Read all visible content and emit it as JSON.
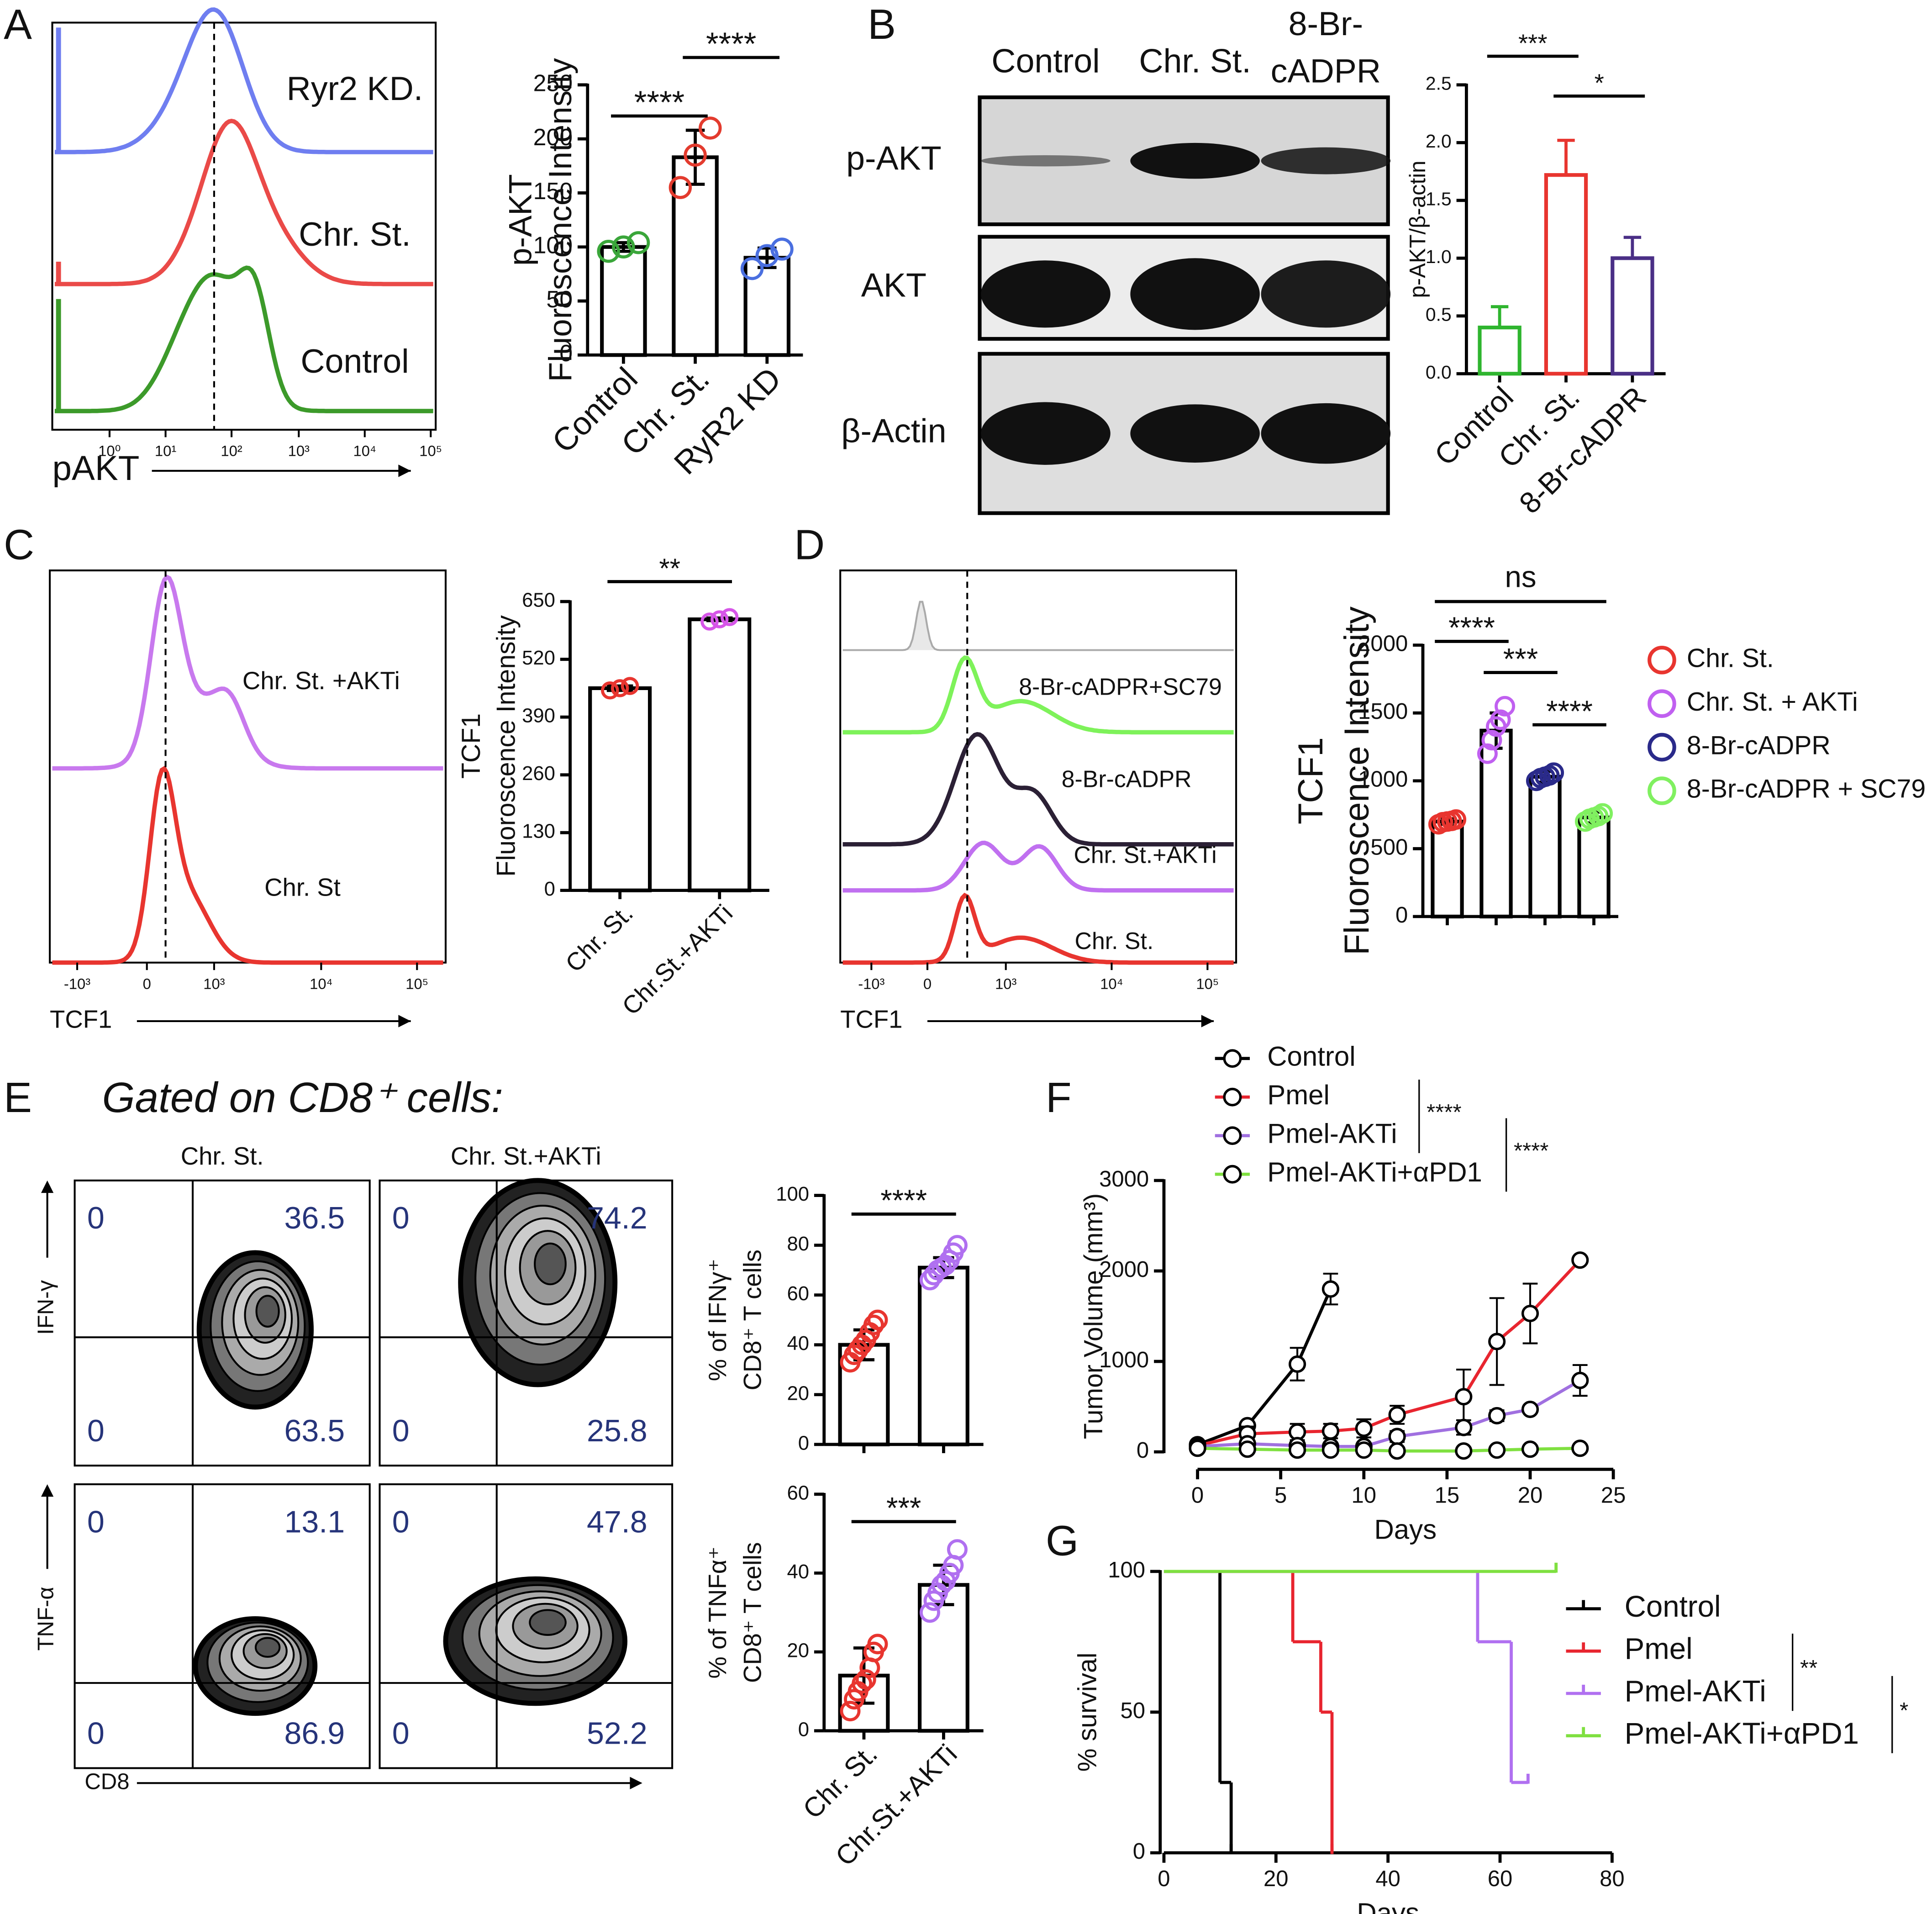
{
  "chart_data": [
    {
      "type": "histogram-overlay",
      "panel": "A",
      "labels": [
        "Ryr2 KD.",
        "Chr. St.",
        "Control"
      ],
      "colors": [
        "#6f7ef0",
        "#ea4a48",
        "#3c9a2a"
      ],
      "x_label": "pAKT",
      "xticks": [
        {
          "value": 1,
          "label": "10⁰"
        },
        {
          "value": 10,
          "label": "10¹"
        },
        {
          "value": 100,
          "label": "10²"
        },
        {
          "value": 1000,
          "label": "10³"
        },
        {
          "value": 10000,
          "label": "10⁴"
        },
        {
          "value": 100000,
          "label": "10⁵"
        }
      ]
    },
    {
      "type": "bar",
      "ylabel": [
        "p-AKT",
        "Fluoroscence Intensity"
      ],
      "categories": [
        "Control",
        "Chr. St.",
        "RyR2 KD"
      ],
      "values": [
        100,
        183,
        90
      ],
      "errors": [
        4,
        25,
        9
      ],
      "points": [
        [
          96,
          100,
          104
        ],
        [
          155,
          185,
          210
        ],
        [
          80,
          92,
          98
        ]
      ],
      "colors": [
        "#3aa63a",
        "#e33b2e",
        "#4a6fe0"
      ],
      "outline_color": "#000000",
      "ylim": [
        0,
        250
      ],
      "yticks": [
        0,
        50,
        100,
        150,
        200,
        250
      ],
      "significance": [
        {
          "label": "****",
          "between": [
            0,
            1
          ]
        },
        {
          "label": "****",
          "between": [
            1,
            2
          ]
        }
      ]
    },
    {
      "type": "blot",
      "panel": "B",
      "columns": [
        "Control",
        "Chr. St.",
        "8-Br-cADPR"
      ],
      "rows": [
        "p-AKT",
        "AKT",
        "β-Actin"
      ]
    },
    {
      "type": "bar",
      "ylabel": [
        "p-AKT/β-actin"
      ],
      "categories": [
        "Control",
        "Chr. St.",
        "8-Br-cADPR"
      ],
      "values": [
        0.4,
        1.72,
        1.0
      ],
      "errors": [
        0.18,
        0.3,
        0.18
      ],
      "colors": [
        "#2fb52f",
        "#e8352f",
        "#4a2f86"
      ],
      "error_style": "up",
      "ylim": [
        0,
        2.5
      ],
      "yticks": [
        {
          "value": 0,
          "label": "0.0"
        },
        0.5,
        {
          "value": 1,
          "label": "1.0"
        },
        1.5,
        {
          "value": 2,
          "label": "2.0"
        },
        2.5
      ],
      "significance": [
        {
          "label": "***",
          "between": [
            0,
            1
          ]
        },
        {
          "label": "*",
          "between": [
            1,
            2
          ]
        }
      ]
    },
    {
      "type": "histogram-overlay",
      "panel": "C",
      "labels": [
        "Chr. St. +AKTi",
        "Chr. St"
      ],
      "colors": [
        "#c879ee",
        "#e8352f"
      ],
      "x_label": "TCF1",
      "xticks": [
        {
          "value": -1000,
          "label": "-10³"
        },
        0,
        {
          "value": 1000,
          "label": "10³"
        },
        {
          "value": 10000,
          "label": "10⁴"
        },
        {
          "value": 100000,
          "label": "10⁵"
        }
      ]
    },
    {
      "type": "bar",
      "ylabel": [
        "TCF1",
        "Fluoroscence Intensity"
      ],
      "categories": [
        "Chr. St.",
        "Chr.St.+AKTi"
      ],
      "values": [
        455,
        610
      ],
      "errors": [
        5,
        3
      ],
      "points": [
        [
          450,
          455,
          460
        ],
        [
          605,
          610,
          615
        ]
      ],
      "colors": [
        "#e8352f",
        "#d655e8"
      ],
      "outline_color": "#000000",
      "ylim": [
        0,
        650
      ],
      "yticks": [
        0,
        130,
        260,
        390,
        520,
        650
      ],
      "significance": [
        {
          "label": "**",
          "between": [
            0,
            1
          ]
        }
      ]
    },
    {
      "type": "histogram-overlay",
      "panel": "D",
      "labels": [
        "8-Br-cADPR+SC79",
        "8-Br-cADPR",
        "Chr. St.+AKTi",
        "Chr. St."
      ],
      "colors": [
        "#7ef25a",
        "#2b2035",
        "#c070f0",
        "#e8352f"
      ],
      "x_label": "TCF1",
      "xticks": [
        {
          "value": -1000,
          "label": "-10³"
        },
        0,
        {
          "value": 1000,
          "label": "10³"
        },
        {
          "value": 10000,
          "label": "10⁴"
        },
        {
          "value": 100000,
          "label": "10⁵"
        }
      ]
    },
    {
      "type": "bar",
      "ylabel": [
        "TCF1",
        "Fluoroscence Intensity"
      ],
      "categories": [
        null,
        null,
        null,
        null
      ],
      "legend": [
        "Chr. St.",
        "Chr. St. + AKTi",
        "8-Br-cADPR",
        "8-Br-cADPR + SC79"
      ],
      "values": [
        700,
        1370,
        1030,
        730
      ],
      "errors": [
        20,
        130,
        40,
        40
      ],
      "points": [
        [
          680,
          695,
          700,
          705,
          715
        ],
        [
          1200,
          1300,
          1400,
          1450,
          1550
        ],
        [
          1000,
          1020,
          1030,
          1040,
          1060
        ],
        [
          700,
          720,
          730,
          740,
          760
        ]
      ],
      "colors": [
        "#e8352f",
        "#c060f0",
        "#2a2a8a",
        "#80f060"
      ],
      "outline_color": "#000000",
      "ylim": [
        0,
        2000
      ],
      "yticks": [
        0,
        500,
        1000,
        1500,
        2000
      ],
      "significance": [
        {
          "label": "ns",
          "between": [
            0,
            3
          ]
        },
        {
          "label": "****",
          "between": [
            0,
            1
          ]
        },
        {
          "label": "***",
          "between": [
            1,
            2
          ]
        },
        {
          "label": "****",
          "between": [
            2,
            3
          ]
        }
      ]
    },
    {
      "type": "flow-quadrant",
      "panel": "E",
      "title": "Gated on CD8⁺ cells:",
      "columns": [
        "Chr. St.",
        "Chr. St.+AKTi"
      ],
      "rows": [
        "IFN-γ",
        "TNF-α"
      ],
      "x_label": "CD8",
      "quadrants": [
        [
          [
            0,
            36.5,
            0,
            63.5
          ],
          [
            0,
            74.2,
            0,
            25.8
          ]
        ],
        [
          [
            0,
            13.1,
            0,
            86.9
          ],
          [
            0,
            47.8,
            0,
            52.2
          ]
        ]
      ]
    },
    {
      "type": "bar",
      "ylabel": [
        "% of IFNγ⁺",
        "CD8⁺ T cells"
      ],
      "categories": [
        null,
        null
      ],
      "values": [
        40,
        71
      ],
      "errors": [
        6,
        4
      ],
      "points": [
        [
          33,
          36,
          38,
          40,
          42,
          45,
          48,
          50
        ],
        [
          66,
          68,
          70,
          71,
          72,
          74,
          77,
          80
        ]
      ],
      "colors": [
        "#e8352f",
        "#b070f0"
      ],
      "outline_color": "#000000",
      "ylim": [
        0,
        100
      ],
      "yticks": [
        0,
        20,
        40,
        60,
        80,
        100
      ],
      "significance": [
        {
          "label": "****",
          "between": [
            0,
            1
          ]
        }
      ]
    },
    {
      "type": "bar",
      "ylabel": [
        "% of TNFα⁺",
        "CD8⁺ T cells"
      ],
      "categories": [
        "Chr. St.",
        "Chr.St.+AKTi"
      ],
      "values": [
        14,
        37
      ],
      "errors": [
        7,
        5
      ],
      "points": [
        [
          5,
          8,
          10,
          12,
          13,
          16,
          20,
          22
        ],
        [
          30,
          33,
          35,
          37,
          38,
          40,
          42,
          46
        ]
      ],
      "colors": [
        "#e8352f",
        "#b070f0"
      ],
      "outline_color": "#000000",
      "ylim": [
        0,
        60
      ],
      "yticks": [
        0,
        20,
        40,
        60
      ],
      "significance": [
        {
          "label": "***",
          "between": [
            0,
            1
          ]
        }
      ]
    },
    {
      "type": "line",
      "panel": "F",
      "xlabel": "Days",
      "ylabel": "Tumor Volume (mm³)",
      "xlim": [
        0,
        25
      ],
      "xticks": [
        0,
        5,
        10,
        15,
        20,
        25
      ],
      "ylim": [
        0,
        3000
      ],
      "yticks": [
        0,
        1000,
        2000,
        3000
      ],
      "marker_color": "#000000",
      "series": [
        {
          "name": "Control",
          "color": "#000000",
          "x": [
            0,
            3,
            6,
            8
          ],
          "values": [
            80,
            290,
            970,
            1800
          ],
          "errors": [
            10,
            30,
            180,
            170
          ]
        },
        {
          "name": "Pmel",
          "color": "#e8252f",
          "x": [
            0,
            3,
            6,
            8,
            10,
            12,
            16,
            18,
            20,
            23
          ],
          "values": [
            70,
            200,
            220,
            230,
            260,
            410,
            610,
            1220,
            1530,
            2120
          ],
          "errors": [
            10,
            80,
            90,
            80,
            100,
            100,
            300,
            480,
            330,
            30
          ]
        },
        {
          "name": "Pmel-AKTi",
          "color": "#a070e0",
          "x": [
            0,
            3,
            6,
            8,
            10,
            12,
            16,
            18,
            20,
            23
          ],
          "values": [
            60,
            90,
            70,
            60,
            60,
            170,
            270,
            400,
            470,
            790
          ],
          "errors": [
            10,
            40,
            40,
            40,
            40,
            60,
            80,
            60,
            40,
            170
          ]
        },
        {
          "name": "Pmel-AKTi+αPD1",
          "color": "#7fe040",
          "x": [
            0,
            3,
            6,
            8,
            10,
            12,
            16,
            18,
            20,
            23
          ],
          "values": [
            40,
            30,
            20,
            20,
            20,
            10,
            10,
            20,
            30,
            40
          ],
          "errors": [
            5,
            5,
            5,
            5,
            5,
            5,
            5,
            5,
            5,
            5
          ]
        }
      ],
      "legend_significance": [
        {
          "label": "****",
          "between": [
            1,
            2
          ]
        },
        {
          "label": "****",
          "between": [
            2,
            3
          ]
        }
      ]
    },
    {
      "type": "step",
      "panel": "G",
      "xlabel": "Days",
      "ylabel": "% survival",
      "xlim": [
        0,
        80
      ],
      "xticks": [
        0,
        20,
        40,
        60,
        80
      ],
      "ylim": [
        0,
        100
      ],
      "yticks": [
        0,
        50,
        100
      ],
      "series": [
        {
          "name": "Control",
          "color": "#000000",
          "x": [
            0,
            10,
            12
          ],
          "values": [
            100,
            25,
            0
          ]
        },
        {
          "name": "Pmel",
          "color": "#e8252f",
          "x": [
            0,
            23,
            28,
            30
          ],
          "values": [
            100,
            75,
            50,
            0
          ]
        },
        {
          "name": "Pmel-AKTi",
          "color": "#b070f0",
          "x": [
            0,
            56,
            62,
            65
          ],
          "values": [
            100,
            75,
            25,
            25
          ]
        },
        {
          "name": "Pmel-AKTi+αPD1",
          "color": "#7fe040",
          "x": [
            0,
            70
          ],
          "values": [
            100,
            100
          ]
        }
      ],
      "legend_significance": [
        {
          "label": "**",
          "between": [
            1,
            2
          ]
        },
        {
          "label": "*",
          "between": [
            2,
            3
          ]
        }
      ]
    }
  ]
}
